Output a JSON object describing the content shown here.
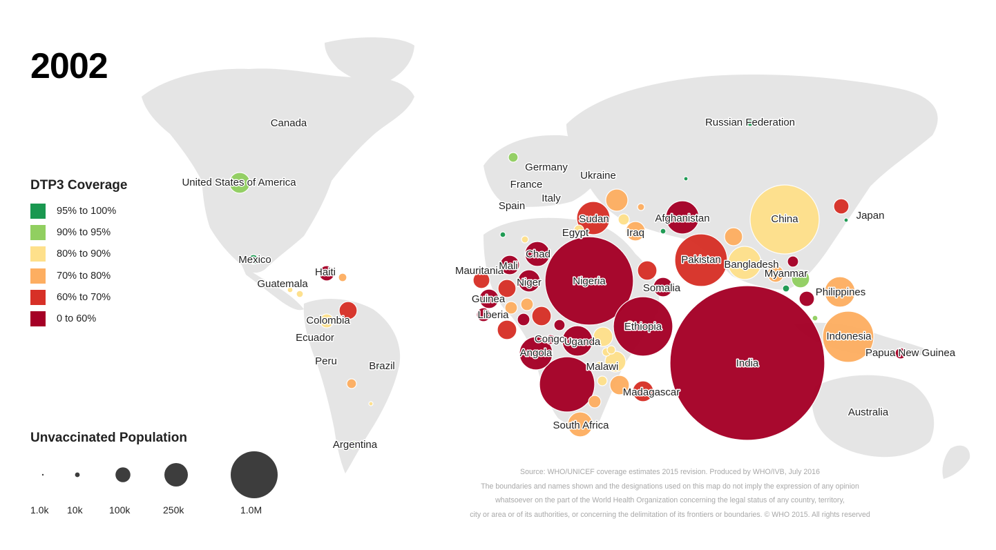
{
  "year": "2002",
  "colors": {
    "land": "#e5e5e5",
    "c95_100": "#1a9850",
    "c90_95": "#91cf60",
    "c80_90": "#fee08b",
    "c70_80": "#fdae61",
    "c60_70": "#d73027",
    "c0_60": "#a50026"
  },
  "coverage_legend": {
    "title": "DTP3 Coverage",
    "items": [
      {
        "label": "95% to 100%",
        "color": "#1a9850"
      },
      {
        "label": "90% to 95%",
        "color": "#91cf60"
      },
      {
        "label": "80% to 90%",
        "color": "#fee08b"
      },
      {
        "label": "70% to 80%",
        "color": "#fdae61"
      },
      {
        "label": "60% to 70%",
        "color": "#d73027"
      },
      {
        "label": "0 to 60%",
        "color": "#a50026"
      }
    ]
  },
  "size_legend": {
    "title": "Unvaccinated Population",
    "items": [
      {
        "label": "1.0k",
        "value": 1000
      },
      {
        "label": "10k",
        "value": 10000
      },
      {
        "label": "100k",
        "value": 100000
      },
      {
        "label": "250k",
        "value": 250000
      },
      {
        "label": "1.0M",
        "value": 1000000
      }
    ]
  },
  "country_labels": [
    "Canada",
    "Russian Federation",
    "United States of America",
    "Germany",
    "Ukraine",
    "France",
    "Italy",
    "Spain",
    "Sudan",
    "Afghanistan",
    "China",
    "Japan",
    "Egypt",
    "Iraq",
    "Mexico",
    "Chad",
    "Pakistan",
    "Bangladesh",
    "Myanmar",
    "Haiti",
    "Mauritania",
    "Mali",
    "Nigeria",
    "Niger",
    "Guatemala",
    "Somalia",
    "Philippines",
    "Guinea",
    "Colombia",
    "Liberia",
    "Ethiopia",
    "Ecuador",
    "Congo",
    "Uganda",
    "Indonesia",
    "Angola",
    "Peru",
    "Brazil",
    "Malawi",
    "India",
    "Papua New Guinea",
    "Madagascar",
    "South Africa",
    "Australia",
    "Argentina"
  ],
  "source_lines": [
    "Source: WHO/UNICEF coverage estimates 2015 revision. Produced by WHO/IVB, July 2016",
    "The boundaries and names shown and the designations used on this map do not imply the expression of any opinion",
    "whatsoever on the part of the World Health Organization concerning the legal status of any country, territory,",
    "city or area or of its authorities, or concerning the delimitation of its frontiers or boundaries. © WHO 2015. All rights reserved"
  ]
}
